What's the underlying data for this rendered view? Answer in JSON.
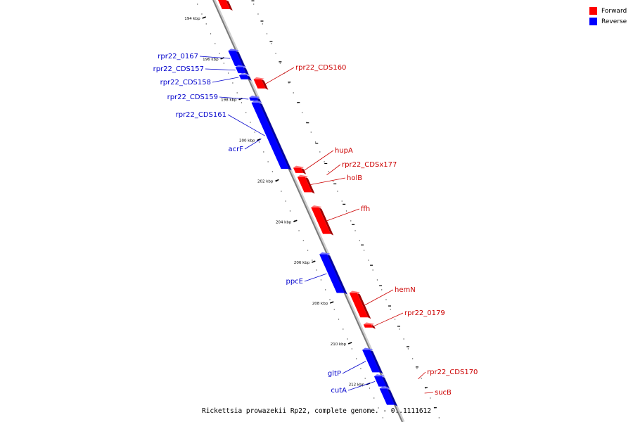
{
  "legend": {
    "items": [
      {
        "label": "Forward",
        "color": "#ff0000"
      },
      {
        "label": "Reverse",
        "color": "#0000ff"
      }
    ]
  },
  "caption": "Rickettsia prowazekii Rp22, complete genome. - 0..1111612",
  "ruler": {
    "ticks": [
      {
        "kb": 194,
        "label": "194 kbp"
      },
      {
        "kb": 196,
        "label": "196 kbp"
      },
      {
        "kb": 198,
        "label": "198 kbp"
      },
      {
        "kb": 200,
        "label": "200 kbp"
      },
      {
        "kb": 202,
        "label": "202 kbp"
      },
      {
        "kb": 204,
        "label": "204 kbp"
      },
      {
        "kb": 206,
        "label": "206 kbp"
      },
      {
        "kb": 208,
        "label": "208 kbp"
      },
      {
        "kb": 210,
        "label": "210 kbp"
      },
      {
        "kb": 212,
        "label": "212 kbp"
      }
    ]
  },
  "genes": [
    {
      "name": "",
      "strand": "forward",
      "start_kb": 193.1,
      "end_kb": 193.55
    },
    {
      "name": "rpr22_0167",
      "strand": "reverse",
      "start_kb": 195.6,
      "end_kb": 196.35
    },
    {
      "name": "rpr22_CDS157",
      "strand": "reverse",
      "start_kb": 196.4,
      "end_kb": 196.7
    },
    {
      "name": "rpr22_CDS158",
      "strand": "reverse",
      "start_kb": 196.8,
      "end_kb": 197.0
    },
    {
      "name": "rpr22_CDS160",
      "strand": "forward",
      "start_kb": 197.0,
      "end_kb": 197.45
    },
    {
      "name": "rpr22_CDS159",
      "strand": "reverse",
      "start_kb": 197.9,
      "end_kb": 198.05
    },
    {
      "name": "rpr22_CDS161",
      "strand": "reverse",
      "start_kb": 198.15,
      "end_kb": 201.4
    },
    {
      "name": "acrF",
      "strand": "reverse",
      "start_kb": 199.9,
      "end_kb": 199.95
    },
    {
      "name": "hupA",
      "strand": "forward",
      "start_kb": 201.35,
      "end_kb": 201.6
    },
    {
      "name": "rpr22_CDSx177",
      "strand": "forward",
      "start_kb": 201.65,
      "end_kb": 201.75
    },
    {
      "name": "holB",
      "strand": "forward",
      "start_kb": 201.8,
      "end_kb": 202.55
    },
    {
      "name": "ffh",
      "strand": "forward",
      "start_kb": 203.3,
      "end_kb": 204.6
    },
    {
      "name": "ppcE",
      "strand": "reverse",
      "start_kb": 205.6,
      "end_kb": 207.5
    },
    {
      "name": "hemN",
      "strand": "forward",
      "start_kb": 207.5,
      "end_kb": 208.7
    },
    {
      "name": "rpr22_0179",
      "strand": "forward",
      "start_kb": 209.05,
      "end_kb": 209.2
    },
    {
      "name": "gltP",
      "strand": "reverse",
      "start_kb": 210.3,
      "end_kb": 211.4
    },
    {
      "name": "cutA",
      "strand": "reverse",
      "start_kb": 211.6,
      "end_kb": 212.1
    },
    {
      "name": "",
      "strand": "reverse",
      "start_kb": 212.2,
      "end_kb": 213.0
    },
    {
      "name": "rpr22_CDS170",
      "strand": "forward",
      "start_kb": 211.7,
      "end_kb": 211.75
    },
    {
      "name": "sucB",
      "strand": "forward",
      "start_kb": 212.4,
      "end_kb": 212.45
    }
  ]
}
